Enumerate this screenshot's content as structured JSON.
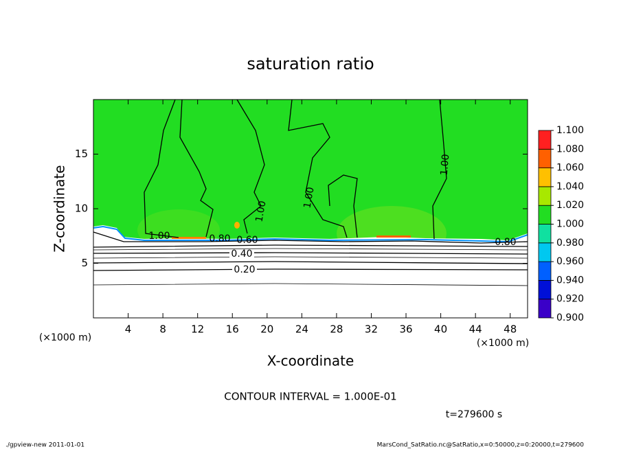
{
  "chart_data": {
    "type": "contour",
    "title": "saturation ratio",
    "xlabel": "X-coordinate",
    "ylabel": "Z-coordinate",
    "x_unit": "(×1000 m)",
    "xlim": [
      0,
      50
    ],
    "ylim": [
      0,
      20
    ],
    "xticks": [
      4,
      8,
      12,
      16,
      20,
      24,
      28,
      32,
      36,
      40,
      44,
      48
    ],
    "yticks": [
      5,
      10,
      15
    ],
    "contour_levels": [
      {
        "value": 1.0,
        "label": "1.00"
      },
      {
        "value": 0.8,
        "label": "0.80"
      },
      {
        "value": 0.6,
        "label": "0.60"
      },
      {
        "value": 0.4,
        "label": "0.40"
      },
      {
        "value": 0.2,
        "label": "0.20"
      }
    ],
    "colorbar": {
      "ticks": [
        {
          "value": 0.9,
          "label": "0.900"
        },
        {
          "value": 0.92,
          "label": "0.920"
        },
        {
          "value": 0.94,
          "label": "0.940"
        },
        {
          "value": 0.96,
          "label": "0.960"
        },
        {
          "value": 0.98,
          "label": "0.980"
        },
        {
          "value": 1.0,
          "label": "1.000"
        },
        {
          "value": 1.02,
          "label": "1.020"
        },
        {
          "value": 1.04,
          "label": "1.040"
        },
        {
          "value": 1.06,
          "label": "1.060"
        },
        {
          "value": 1.08,
          "label": "1.080"
        },
        {
          "value": 1.1,
          "label": "1.100"
        }
      ],
      "colors": [
        "#3a00c8",
        "#0010d8",
        "#0060ff",
        "#00c8f0",
        "#10e0a0",
        "#22dd22",
        "#a8e800",
        "#ffc000",
        "#ff6000",
        "#ff2020"
      ]
    },
    "contour_interval": "CONTOUR INTERVAL = 1.000E-01",
    "time": "t=279600 s",
    "footer_left": "./gpview-new   2011-01-01",
    "footer_right": "MarsCond_SatRatio.nc@SatRatio,x=0:50000,z=0:20000,t=279600"
  }
}
